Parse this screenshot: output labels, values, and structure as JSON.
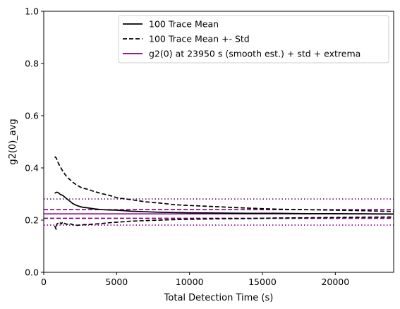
{
  "chart_data": {
    "type": "line",
    "xlabel": "Total Detection Time (s)",
    "ylabel": "g2(0)_avg",
    "xlim": [
      0,
      24000
    ],
    "ylim": [
      0.0,
      1.0
    ],
    "xticks": [
      0,
      5000,
      10000,
      15000,
      20000
    ],
    "xtick_labels": [
      "0",
      "5000",
      "10000",
      "15000",
      "20000"
    ],
    "yticks": [
      0.0,
      0.2,
      0.4,
      0.6,
      0.8,
      1.0
    ],
    "ytick_labels": [
      "0.0",
      "0.2",
      "0.4",
      "0.6",
      "0.8",
      "1.0"
    ],
    "legend_position": "top-right",
    "legend": [
      {
        "label": "100 Trace Mean",
        "color": "#000000",
        "style": "solid"
      },
      {
        "label": "100 Trace Mean +- Std",
        "color": "#000000",
        "style": "dashed"
      },
      {
        "label": "g2(0) at 23950 s (smooth est.) + std + extrema",
        "color": "#800080",
        "style": "solid"
      }
    ],
    "series": [
      {
        "name": "100 Trace Mean",
        "color": "#000000",
        "style": "solid",
        "x": [
          750,
          900,
          1000,
          1100,
          1200,
          1300,
          1400,
          1600,
          1800,
          2000,
          2300,
          2600,
          3000,
          3500,
          4000,
          4500,
          5000,
          6000,
          7000,
          8000,
          9000,
          10000,
          12000,
          14000,
          16000,
          18000,
          20000,
          22000,
          24000
        ],
        "y": [
          0.303,
          0.307,
          0.305,
          0.3,
          0.297,
          0.295,
          0.29,
          0.281,
          0.272,
          0.263,
          0.255,
          0.25,
          0.247,
          0.243,
          0.24,
          0.239,
          0.238,
          0.234,
          0.232,
          0.23,
          0.229,
          0.228,
          0.227,
          0.226,
          0.226,
          0.225,
          0.225,
          0.224,
          0.223
        ]
      },
      {
        "name": "100 Trace Mean +- Std",
        "color": "#000000",
        "style": "dashed",
        "x": [
          750,
          800,
          850,
          900,
          950,
          1000,
          1100,
          1200,
          1300,
          1500,
          1700,
          2000,
          2300,
          2600,
          3000,
          3500,
          4000,
          4500,
          5000,
          6000,
          7000,
          8000,
          9000,
          10000,
          12000,
          14000,
          16000,
          18000,
          20000,
          22000,
          24000
        ],
        "y": [
          0.44,
          0.442,
          0.438,
          0.432,
          0.425,
          0.418,
          0.408,
          0.398,
          0.388,
          0.372,
          0.36,
          0.345,
          0.333,
          0.324,
          0.318,
          0.309,
          0.301,
          0.295,
          0.286,
          0.278,
          0.27,
          0.265,
          0.259,
          0.256,
          0.251,
          0.246,
          0.242,
          0.24,
          0.238,
          0.236,
          0.233
        ]
      },
      {
        "name": "100 Trace Mean -Std",
        "color": "#000000",
        "style": "dashed",
        "x": [
          750,
          850,
          900,
          1000,
          1100,
          1200,
          1300,
          1400,
          1600,
          1800,
          2000,
          2300,
          2600,
          3000,
          3500,
          4000,
          4500,
          5000,
          6000,
          7000,
          8000,
          9000,
          10000,
          12000,
          14000,
          16000,
          18000,
          20000,
          22000,
          24000
        ],
        "y": [
          0.178,
          0.165,
          0.185,
          0.188,
          0.192,
          0.185,
          0.193,
          0.188,
          0.184,
          0.187,
          0.182,
          0.18,
          0.182,
          0.183,
          0.185,
          0.187,
          0.19,
          0.192,
          0.196,
          0.198,
          0.2,
          0.202,
          0.203,
          0.205,
          0.206,
          0.208,
          0.209,
          0.21,
          0.211,
          0.212
        ]
      }
    ],
    "reference_lines": [
      {
        "y": 0.224,
        "color": "#800080",
        "style": "solid"
      },
      {
        "y": 0.24,
        "color": "#800080",
        "style": "dashed"
      },
      {
        "y": 0.207,
        "color": "#800080",
        "style": "dashed"
      },
      {
        "y": 0.281,
        "color": "#800080",
        "style": "dotted"
      },
      {
        "y": 0.181,
        "color": "#800080",
        "style": "dotted"
      }
    ]
  }
}
